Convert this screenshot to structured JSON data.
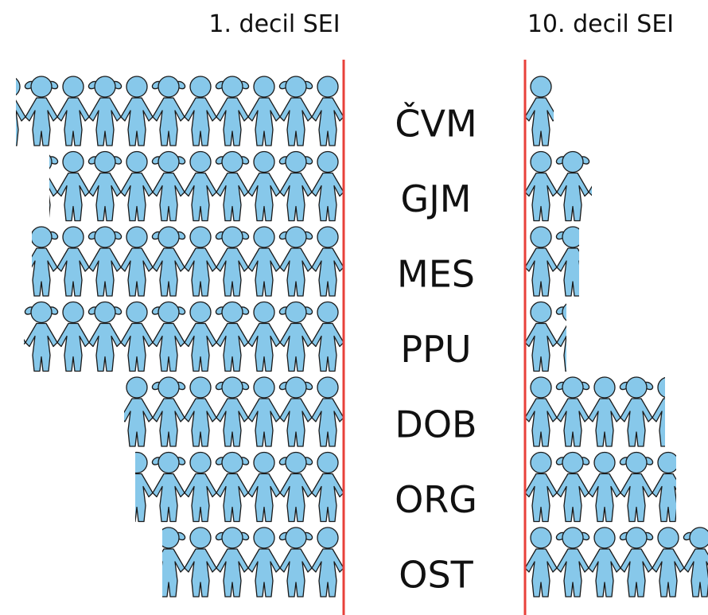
{
  "chart_data": {
    "type": "pictogram",
    "categories": [
      "ČVM",
      "GJM",
      "MES",
      "PPU",
      "DOB",
      "ORG",
      "OST"
    ],
    "series": [
      {
        "name": "1. decil SEI",
        "values": [
          10.3,
          9.25,
          9.8,
          10.05,
          6.9,
          6.55,
          5.7
        ]
      },
      {
        "name": "10. decil SEI",
        "values": [
          0.9,
          2.1,
          1.7,
          1.3,
          4.4,
          4.75,
          5.75
        ]
      }
    ],
    "color": "#87c8ea",
    "line_color": "#e8413a"
  }
}
